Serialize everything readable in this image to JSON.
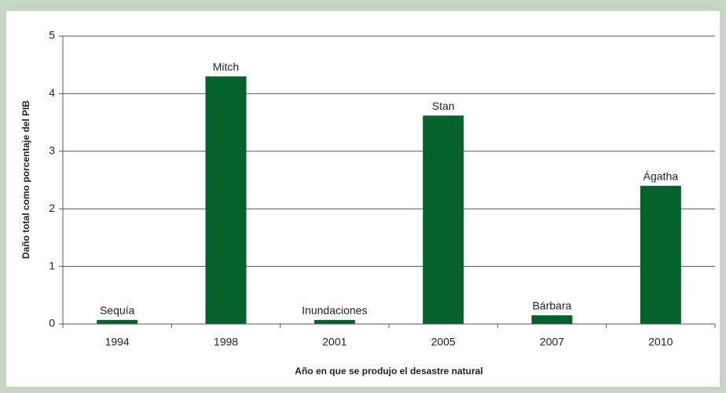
{
  "chart_data": {
    "type": "bar",
    "x_label": "Año en que se produjo el desastre natural",
    "y_label": "Daño total como porcentaje del PIB",
    "categories": [
      "1994",
      "1998",
      "2001",
      "2005",
      "2007",
      "2010"
    ],
    "values": [
      0.07,
      4.3,
      0.07,
      3.62,
      0.15,
      2.4
    ],
    "annotations": [
      "Sequía",
      "Mitch",
      "Inundaciones",
      "Stan",
      "Bárbara",
      "Ágatha"
    ],
    "color": "#05622b",
    "ylim": [
      0,
      5
    ],
    "yticks": [
      0,
      1,
      2,
      3,
      4,
      5
    ],
    "grid": true
  }
}
